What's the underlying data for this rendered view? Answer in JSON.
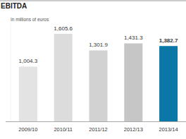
{
  "chart_data": {
    "type": "bar",
    "title": "EBITDA",
    "subtitle": "In millions of euros",
    "categories": [
      "2009/10",
      "2010/11",
      "2011/12",
      "2012/13",
      "2013/14"
    ],
    "values": [
      1004.3,
      1605.6,
      1301.9,
      1431.3,
      1382.7
    ],
    "value_labels": [
      "1,004.3",
      "1,605.6",
      "1,301.9",
      "1,431.3",
      "1,382.7"
    ],
    "colors": [
      "#e3e3e3",
      "#dcdcdc",
      "#d2d2d2",
      "#c6c6c6",
      "#0a77a6"
    ],
    "ylim": [
      0,
      1800
    ],
    "data_labels": true,
    "tick_labels": "x"
  }
}
